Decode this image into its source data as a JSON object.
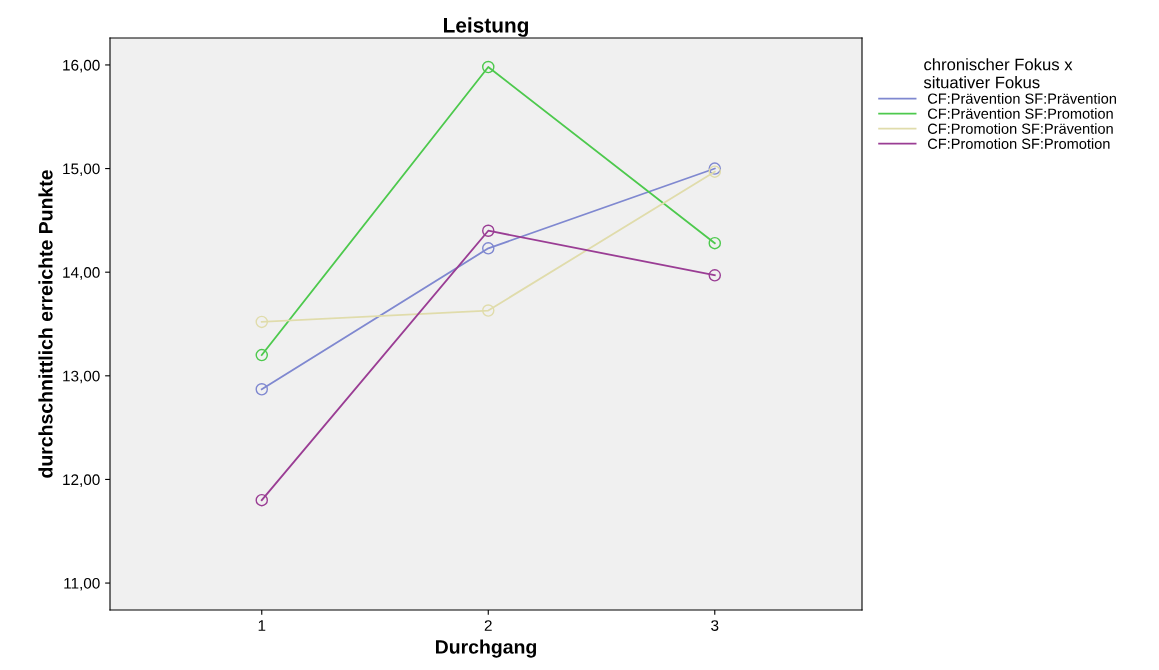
{
  "chart_data": {
    "type": "line",
    "title": "Leistung",
    "xlabel": "Durchgang",
    "ylabel": "durchschnittlich erreichte Punkte",
    "x": [
      1,
      2,
      3
    ],
    "xlim": [
      0.33,
      3.65
    ],
    "xticks": [
      1,
      2,
      3
    ],
    "ylim": [
      10.74,
      16.26
    ],
    "yticks": [
      {
        "value": 11,
        "label": "11,00"
      },
      {
        "value": 12,
        "label": "12,00"
      },
      {
        "value": 13,
        "label": "13,00"
      },
      {
        "value": 14,
        "label": "14,00"
      },
      {
        "value": 15,
        "label": "15,00"
      },
      {
        "value": 16,
        "label": "16,00"
      }
    ],
    "legend_title": "chronischer Fokus x\nsituativer Fokus",
    "legend": "right",
    "marker": "circle",
    "grid": false,
    "series": [
      {
        "name": "CF:Prävention SF:Prävention",
        "color": "#7f88d0",
        "values": [
          12.87,
          14.23,
          15.0
        ]
      },
      {
        "name": "CF:Prävention SF:Promotion",
        "color": "#4dc94d",
        "values": [
          13.2,
          15.98,
          14.28
        ]
      },
      {
        "name": "CF:Promotion SF:Prävention",
        "color": "#e0dcab",
        "values": [
          13.52,
          13.63,
          14.97
        ]
      },
      {
        "name": "CF:Promotion SF:Promotion",
        "color": "#9a3d94",
        "values": [
          11.8,
          14.4,
          13.97
        ]
      }
    ]
  }
}
